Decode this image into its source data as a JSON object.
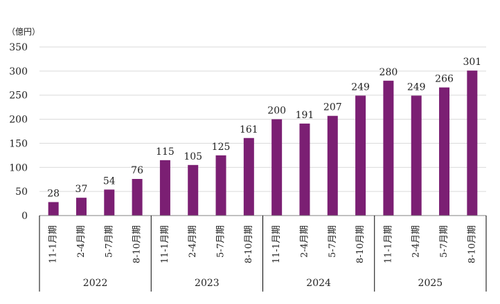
{
  "chart_data": {
    "type": "bar",
    "y_unit": "（億円）",
    "ylim": [
      0,
      350
    ],
    "y_ticks": [
      "0",
      "50",
      "100",
      "150",
      "200",
      "250",
      "300",
      "350"
    ],
    "grid": true,
    "bar_color": "#7b1f73",
    "categories": [
      "11-1月期",
      "2-4月期",
      "5-7月期",
      "8-10月期",
      "11-1月期",
      "2-4月期",
      "5-7月期",
      "8-10月期",
      "11-1月期",
      "2-4月期",
      "5-7月期",
      "8-10月期",
      "11-1月期",
      "2-4月期",
      "5-7月期",
      "8-10月期"
    ],
    "values": [
      28,
      37,
      54,
      76,
      115,
      105,
      125,
      161,
      200,
      191,
      207,
      249,
      280,
      249,
      266,
      301
    ],
    "groups": [
      {
        "label": "2022",
        "count": 4
      },
      {
        "label": "2023",
        "count": 4
      },
      {
        "label": "2024",
        "count": 4
      },
      {
        "label": "2025",
        "count": 4
      }
    ]
  }
}
